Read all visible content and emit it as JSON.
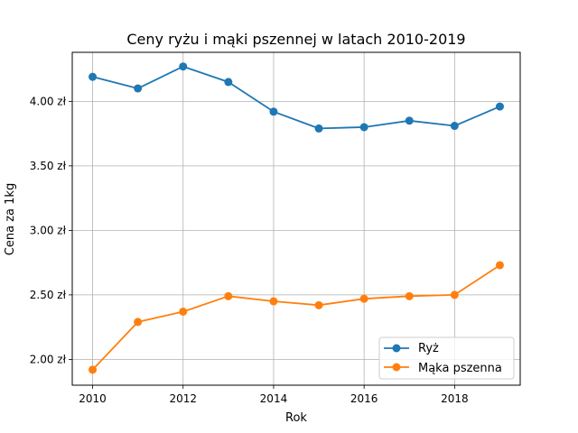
{
  "chart_data": {
    "type": "line",
    "title": "Ceny ryżu i mąki pszennej w latach 2010-2019",
    "xlabel": "Rok",
    "ylabel": "Cena za 1kg",
    "x": [
      2010,
      2011,
      2012,
      2013,
      2014,
      2015,
      2016,
      2017,
      2018,
      2019
    ],
    "series": [
      {
        "name": "Ryż",
        "color": "#1f77b4",
        "values": [
          4.19,
          4.1,
          4.27,
          4.15,
          3.92,
          3.79,
          3.8,
          3.85,
          3.81,
          3.96
        ]
      },
      {
        "name": "Mąka pszenna",
        "color": "#ff7f0e",
        "values": [
          1.92,
          2.29,
          2.37,
          2.49,
          2.45,
          2.42,
          2.47,
          2.49,
          2.5,
          2.73
        ]
      }
    ],
    "xlim": [
      2009.55,
      2019.45
    ],
    "ylim": [
      1.8,
      4.38
    ],
    "xticks": [
      2010,
      2012,
      2014,
      2016,
      2018
    ],
    "xtick_labels": [
      "2010",
      "2012",
      "2014",
      "2016",
      "2018"
    ],
    "yticks": [
      2.0,
      2.5,
      3.0,
      3.5,
      4.0
    ],
    "ytick_labels": [
      "2.00 zł",
      "2.50 zł",
      "3.00 zł",
      "3.50 zł",
      "4.00 zł"
    ],
    "grid": true,
    "legend_position": "lower-right",
    "marker": "circle"
  }
}
